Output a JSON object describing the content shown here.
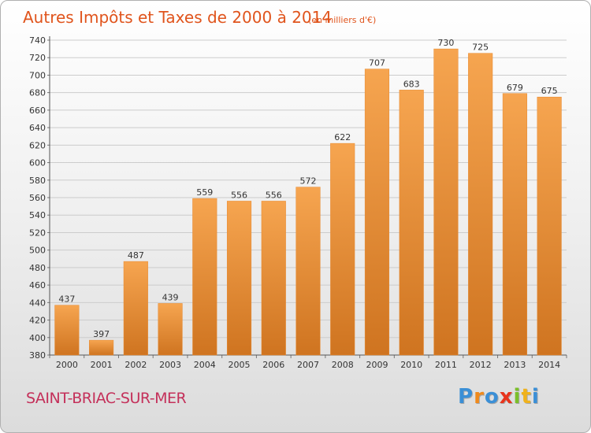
{
  "title": {
    "main": "Autres Impôts et Taxes de 2000 à 2014",
    "unit": "(en milliers d'€)"
  },
  "place": "SAINT-BRIAC-SUR-MER",
  "logo": {
    "letters": [
      {
        "ch": "P",
        "color": "#3b8fd6"
      },
      {
        "ch": "r",
        "color": "#f08a1c"
      },
      {
        "ch": "o",
        "color": "#3b8fd6"
      },
      {
        "ch": "x",
        "color": "#e8341c"
      },
      {
        "ch": "i",
        "color": "#7bbf2a"
      },
      {
        "ch": "t",
        "color": "#f0b21c"
      },
      {
        "ch": "i",
        "color": "#3b8fd6"
      }
    ]
  },
  "colors": {
    "bar_top": "#f6a550",
    "bar_bottom": "#cf7420",
    "grid": "#cccccc",
    "title": "#e0541c",
    "place": "#c4305a"
  },
  "chart_data": {
    "type": "bar",
    "categories": [
      "2000",
      "2001",
      "2002",
      "2003",
      "2004",
      "2005",
      "2006",
      "2007",
      "2008",
      "2009",
      "2010",
      "2011",
      "2012",
      "2013",
      "2014"
    ],
    "values": [
      437,
      397,
      487,
      439,
      559,
      556,
      556,
      572,
      622,
      707,
      683,
      730,
      725,
      679,
      675
    ],
    "ylim": [
      380,
      740
    ],
    "yticks": [
      380,
      400,
      420,
      440,
      460,
      480,
      500,
      520,
      540,
      560,
      580,
      600,
      620,
      640,
      660,
      680,
      700,
      720,
      740
    ],
    "grid": true,
    "legend": "none"
  }
}
